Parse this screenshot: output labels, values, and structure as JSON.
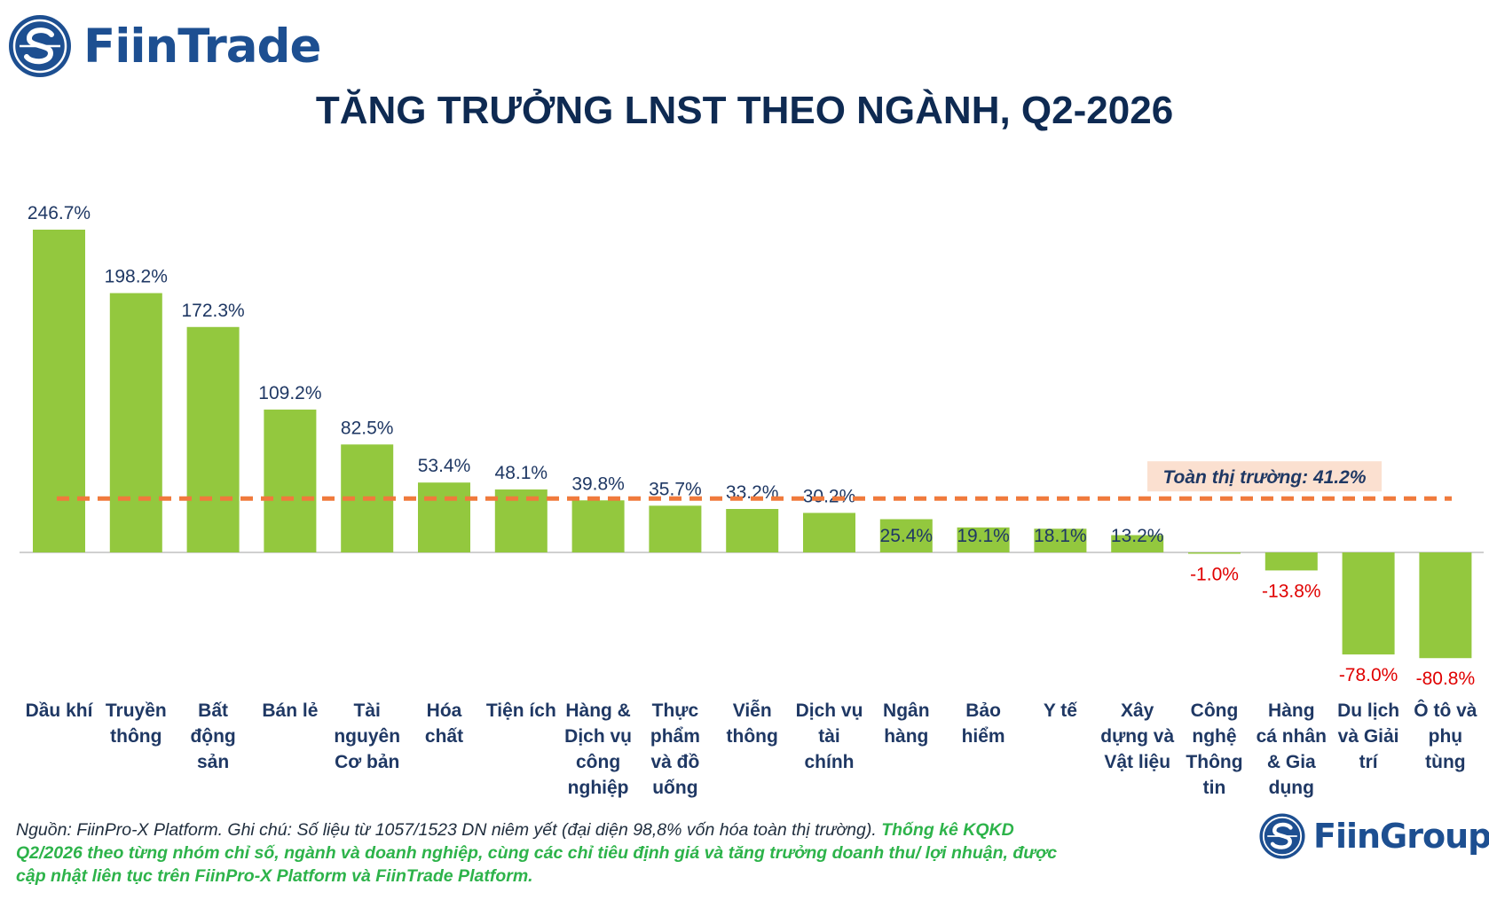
{
  "brand": {
    "name": "FiinTrade",
    "logo_icon": "fiin-s-logo-icon"
  },
  "footer_brand": {
    "name": "FiinGroup",
    "logo_icon": "fiin-s-logo-icon"
  },
  "footnote": {
    "normal": "Nguồn: FiinPro-X Platform. Ghi chú: Số liệu từ 1057/1523 DN niêm yết (đại diện 98,8% vốn hóa toàn thị trường). ",
    "highlight": "Thống kê KQKD Q2/2026 theo từng nhóm chỉ số, ngành và doanh nghiệp, cùng các chỉ tiêu định giá và tăng trưởng doanh thu/ lợi nhuận, được cập nhật liên tục trên FiinPro-X Platform và FiinTrade Platform."
  },
  "colors": {
    "bar": "#93c83e",
    "positive_label": "#1f3864",
    "negative_label": "#e00000",
    "reference_line": "#f07a3c",
    "reference_box": "#fbe0d0",
    "title": "#0e2a52",
    "brand": "#1d4f91",
    "highlight": "#2db34a"
  },
  "chart_data": {
    "type": "bar",
    "title": "TĂNG TRƯỞNG LNST THEO NGÀNH, Q2-2026",
    "xlabel": "",
    "ylabel": "",
    "unit": "%",
    "ylim": [
      -80.8,
      246.7
    ],
    "grid": false,
    "categories": [
      [
        "Dầu khí"
      ],
      [
        "Truyền",
        "thông"
      ],
      [
        "Bất",
        "động",
        "sản"
      ],
      [
        "Bán lẻ"
      ],
      [
        "Tài",
        "nguyên",
        "Cơ bản"
      ],
      [
        "Hóa",
        "chất"
      ],
      [
        "Tiện ích"
      ],
      [
        "Hàng &",
        "Dịch vụ",
        "công",
        "nghiệp"
      ],
      [
        "Thực",
        "phẩm",
        "và đồ",
        "uống"
      ],
      [
        "Viễn",
        "thông"
      ],
      [
        "Dịch vụ",
        "tài",
        "chính"
      ],
      [
        "Ngân",
        "hàng"
      ],
      [
        "Bảo",
        "hiểm"
      ],
      [
        "Y tế"
      ],
      [
        "Xây",
        "dựng và",
        "Vật liệu"
      ],
      [
        "Công",
        "nghệ",
        "Thông",
        "tin"
      ],
      [
        "Hàng",
        "cá nhân",
        "& Gia",
        "dụng"
      ],
      [
        "Du lịch",
        "và Giải",
        "trí"
      ],
      [
        "Ô tô và",
        "phụ",
        "tùng"
      ]
    ],
    "values": [
      246.7,
      198.2,
      172.3,
      109.2,
      82.5,
      53.4,
      48.1,
      39.8,
      35.7,
      33.2,
      30.2,
      25.4,
      19.1,
      18.1,
      13.2,
      -1.0,
      -13.8,
      -78.0,
      -80.8
    ],
    "data_labels": [
      "246.7%",
      "198.2%",
      "172.3%",
      "109.2%",
      "82.5%",
      "53.4%",
      "48.1%",
      "39.8%",
      "35.7%",
      "33.2%",
      "30.2%",
      "25.4%",
      "19.1%",
      "18.1%",
      "13.2%",
      "-1.0%",
      "-13.8%",
      "-78.0%",
      "-80.8%"
    ],
    "reference_line": {
      "value": 41.2,
      "label": "Toàn thị trường: 41.2%"
    }
  }
}
